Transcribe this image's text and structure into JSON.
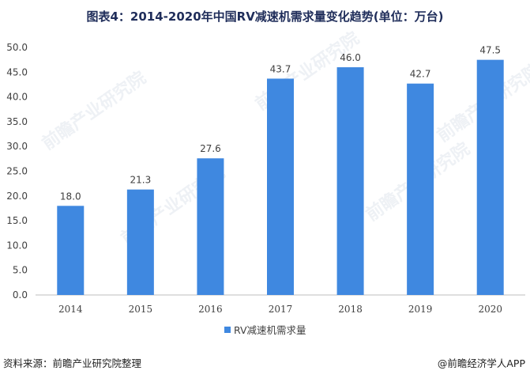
{
  "chart_data": {
    "type": "bar",
    "title": "图表4：2014-2020年中国RV减速机需求量变化趋势(单位：万台)",
    "categories": [
      "2014",
      "2015",
      "2016",
      "2017",
      "2018",
      "2019",
      "2020"
    ],
    "series": [
      {
        "name": "RV减速机需求量",
        "values": [
          18.0,
          21.3,
          27.6,
          43.7,
          46.0,
          42.7,
          47.5
        ]
      }
    ],
    "value_labels": [
      "18.0",
      "21.3",
      "27.6",
      "43.7",
      "46.0",
      "42.7",
      "47.5"
    ],
    "ylim": [
      0,
      50
    ],
    "yticks": [
      "0.0",
      "5.0",
      "10.0",
      "15.0",
      "20.0",
      "25.0",
      "30.0",
      "35.0",
      "40.0",
      "45.0",
      "50.0"
    ],
    "grid": false,
    "legend": "bottom-center",
    "bar_color": "#3f88e0"
  },
  "footer": {
    "source": "资料来源：前瞻产业研究院整理",
    "credit": "@前瞻经济学人APP"
  },
  "watermark": "前瞻产业研究院"
}
